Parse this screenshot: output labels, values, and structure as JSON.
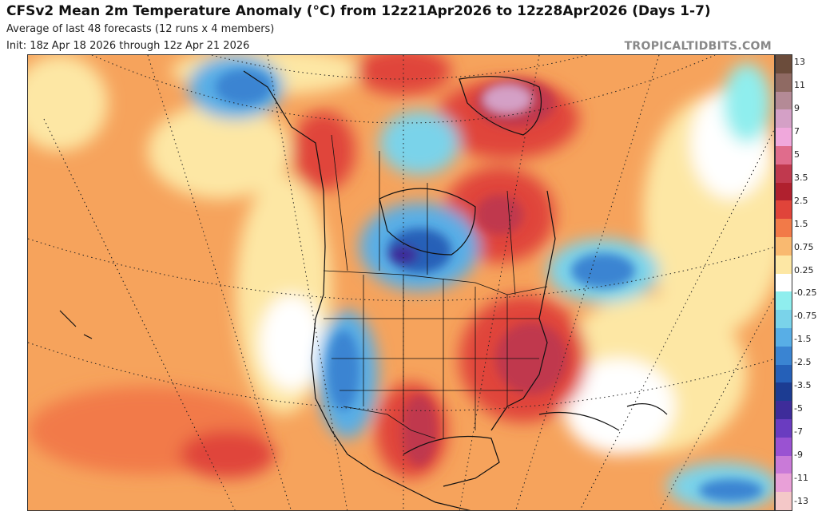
{
  "header": {
    "title": "CFSv2 Mean 2m Temperature Anomaly (°C) from 12z21Apr2026 to 12z28Apr2026 (Days 1-7)",
    "subtitle": "Average of last 48 forecasts (12 runs x 4 members)",
    "init": "Init: 18z Apr 18 2026 through 12z Apr 21 2026",
    "brand": "TROPICALTIDBITS.COM"
  },
  "colorbar": {
    "colors": [
      "#6b4c3b",
      "#8f6a63",
      "#b48a96",
      "#d4a0c6",
      "#f0a8dc",
      "#e06c8c",
      "#c0394e",
      "#b0202e",
      "#e0443a",
      "#f27a48",
      "#f9b970",
      "#fde7a4",
      "#ffffff",
      "#8feeee",
      "#7ad3ea",
      "#58aee6",
      "#3a84d2",
      "#2560b8",
      "#1c3c92",
      "#3e2c9a",
      "#6a3cc0",
      "#9a52d2",
      "#c97ad8",
      "#e9a0d8",
      "#f4c8c8"
    ],
    "labels": [
      "13",
      "11",
      "9",
      "7",
      "5",
      "3.5",
      "2.5",
      "1.5",
      "0.75",
      "0.25",
      "-0.25",
      "-0.75",
      "-1.5",
      "-2.5",
      "-3.5",
      "-5",
      "-7",
      "-9",
      "-11",
      "-13"
    ]
  }
}
